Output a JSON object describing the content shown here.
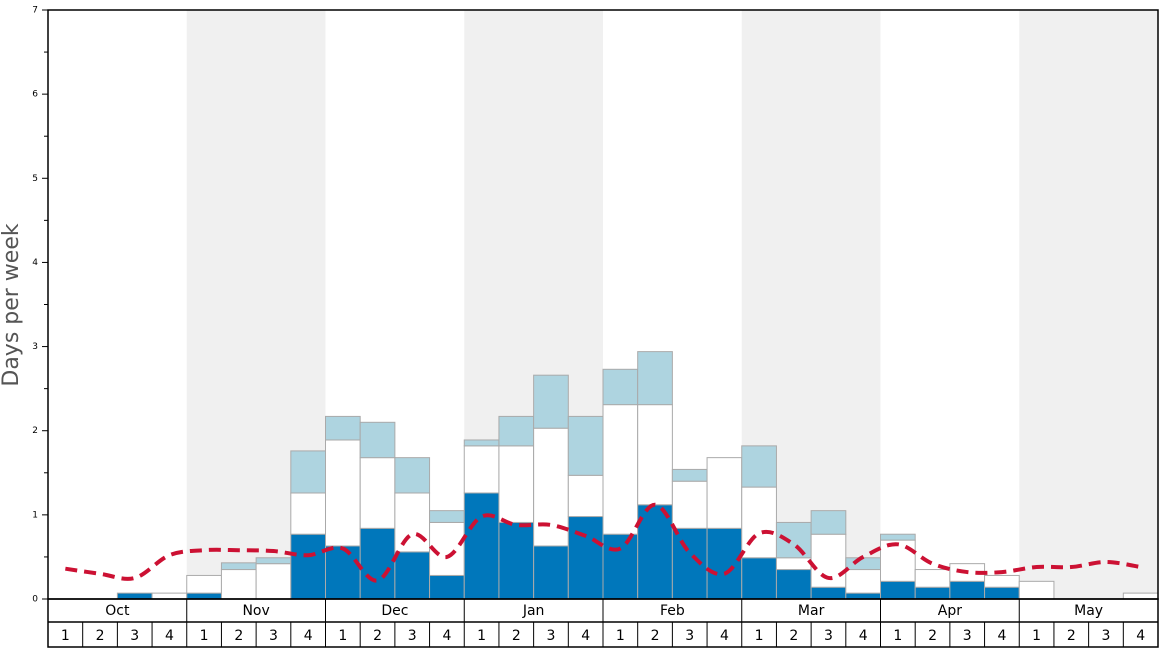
{
  "chart_data": {
    "type": "bar",
    "ylabel": "Days per week",
    "ylim": [
      0,
      7
    ],
    "yticks": [
      0,
      1,
      2,
      3,
      4,
      5,
      6,
      7
    ],
    "yminorticks": [
      0.5,
      1.5,
      2.5,
      3.5,
      4.5,
      5.5,
      6.5
    ],
    "months": [
      "Oct",
      "Nov",
      "Dec",
      "Jan",
      "Feb",
      "Mar",
      "Apr",
      "May"
    ],
    "categories": [
      "1",
      "2",
      "3",
      "4",
      "1",
      "2",
      "3",
      "4",
      "1",
      "2",
      "3",
      "4",
      "1",
      "2",
      "3",
      "4",
      "1",
      "2",
      "3",
      "4",
      "1",
      "2",
      "3",
      "4",
      "1",
      "2",
      "3",
      "4",
      "1",
      "2",
      "3",
      "4"
    ],
    "series": [
      {
        "color": "#0077bb",
        "values": [
          0,
          0,
          0.07,
          0,
          0.07,
          0,
          0,
          0.77,
          0.63,
          0.84,
          0.56,
          0.28,
          1.26,
          0.91,
          0.63,
          0.98,
          0.77,
          1.12,
          0.84,
          0.84,
          0.49,
          0.35,
          0.14,
          0.07,
          0.21,
          0.14,
          0.21,
          0.14,
          0,
          0,
          0,
          0
        ]
      },
      {
        "color": "#ffffff",
        "values": [
          0,
          0,
          0,
          0.07,
          0.21,
          0.35,
          0.42,
          0.49,
          1.26,
          0.84,
          0.7,
          0.63,
          0.56,
          0.91,
          1.4,
          0.49,
          1.54,
          1.19,
          0.56,
          0.84,
          0.84,
          0.14,
          0.63,
          0.28,
          0.49,
          0.21,
          0.21,
          0.14,
          0.21,
          0,
          0,
          0.07
        ]
      },
      {
        "color": "#aed4e0",
        "values": [
          0,
          0,
          0,
          0,
          0,
          0.08,
          0.07,
          0.5,
          0.28,
          0.42,
          0.42,
          0.14,
          0.07,
          0.35,
          0.63,
          0.7,
          0.42,
          0.63,
          0.14,
          0,
          0.49,
          0.42,
          0.28,
          0.14,
          0.07,
          0,
          0,
          0,
          0,
          0,
          0,
          0
        ]
      },
      {
        "type": "line",
        "color": "#cc1133",
        "values": [
          0.36,
          0.3,
          0.25,
          0.52,
          0.58,
          0.58,
          0.57,
          0.52,
          0.6,
          0.22,
          0.77,
          0.5,
          0.98,
          0.88,
          0.88,
          0.75,
          0.6,
          1.12,
          0.55,
          0.3,
          0.78,
          0.65,
          0.25,
          0.5,
          0.65,
          0.42,
          0.32,
          0.32,
          0.38,
          0.38,
          0.44,
          0.38
        ]
      }
    ]
  }
}
